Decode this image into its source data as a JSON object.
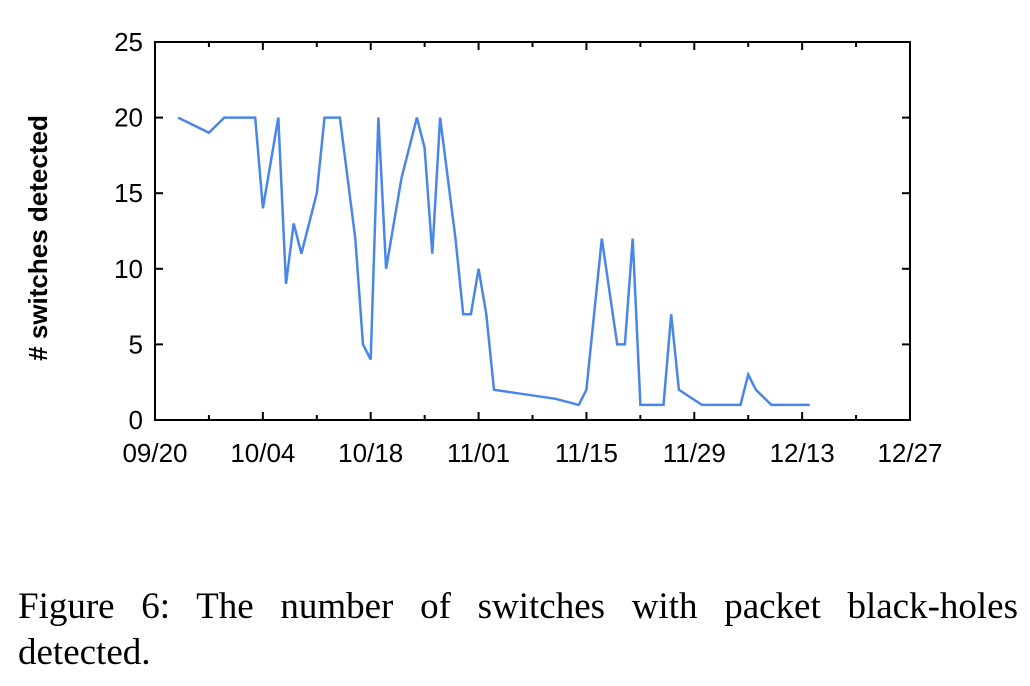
{
  "chart_data": {
    "type": "line",
    "title": "",
    "xlabel": "",
    "ylabel": "# switches detected",
    "x_ticks": [
      "09/20",
      "10/04",
      "10/18",
      "11/01",
      "11/15",
      "11/29",
      "12/13",
      "12/27"
    ],
    "y_ticks": [
      0,
      5,
      10,
      15,
      20,
      25
    ],
    "xlim": [
      "09/20",
      "12/27"
    ],
    "ylim": [
      0,
      25
    ],
    "grid": false,
    "legend": "none",
    "series_color": "#4a86e8",
    "series": [
      {
        "values": [
          {
            "x": "09/23",
            "y": 20
          },
          {
            "x": "09/27",
            "y": 19
          },
          {
            "x": "09/29",
            "y": 20
          },
          {
            "x": "10/03",
            "y": 20
          },
          {
            "x": "10/04",
            "y": 14
          },
          {
            "x": "10/06",
            "y": 20
          },
          {
            "x": "10/07",
            "y": 9
          },
          {
            "x": "10/08",
            "y": 13
          },
          {
            "x": "10/09",
            "y": 11
          },
          {
            "x": "10/11",
            "y": 15
          },
          {
            "x": "10/12",
            "y": 20
          },
          {
            "x": "10/14",
            "y": 20
          },
          {
            "x": "10/16",
            "y": 12
          },
          {
            "x": "10/17",
            "y": 5
          },
          {
            "x": "10/18",
            "y": 4
          },
          {
            "x": "10/19",
            "y": 20
          },
          {
            "x": "10/20",
            "y": 10
          },
          {
            "x": "10/22",
            "y": 16
          },
          {
            "x": "10/24",
            "y": 20
          },
          {
            "x": "10/25",
            "y": 18
          },
          {
            "x": "10/26",
            "y": 11
          },
          {
            "x": "10/27",
            "y": 20
          },
          {
            "x": "10/29",
            "y": 12
          },
          {
            "x": "10/30",
            "y": 7
          },
          {
            "x": "10/31",
            "y": 7
          },
          {
            "x": "11/01",
            "y": 10
          },
          {
            "x": "11/02",
            "y": 7
          },
          {
            "x": "11/03",
            "y": 2
          },
          {
            "x": "11/07",
            "y": 1.7
          },
          {
            "x": "11/11",
            "y": 1.4
          },
          {
            "x": "11/14",
            "y": 1
          },
          {
            "x": "11/15",
            "y": 2
          },
          {
            "x": "11/17",
            "y": 12
          },
          {
            "x": "11/19",
            "y": 5
          },
          {
            "x": "11/20",
            "y": 5
          },
          {
            "x": "11/21",
            "y": 12
          },
          {
            "x": "11/22",
            "y": 1
          },
          {
            "x": "11/25",
            "y": 1
          },
          {
            "x": "11/26",
            "y": 7
          },
          {
            "x": "11/27",
            "y": 2
          },
          {
            "x": "11/30",
            "y": 1
          },
          {
            "x": "12/05",
            "y": 1
          },
          {
            "x": "12/06",
            "y": 3
          },
          {
            "x": "12/07",
            "y": 2
          },
          {
            "x": "12/09",
            "y": 1
          },
          {
            "x": "12/14",
            "y": 1
          }
        ]
      }
    ]
  },
  "caption": "Figure 6:  The number of switches with packet black-holes detected."
}
